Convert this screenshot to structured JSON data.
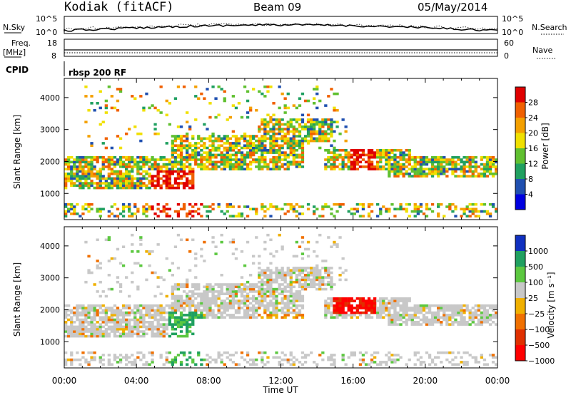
{
  "header": {
    "station": "Kodiak (fitACF)",
    "beam": "Beam 09",
    "date": "05/May/2014"
  },
  "top_panels": {
    "nsky_label": "N.Sky",
    "nsky_ticks": [
      "10^5",
      "10^0"
    ],
    "nsearch_label": "N.Search",
    "nsearch_ticks": [
      "10^5",
      "10^0"
    ],
    "freq_label_1": "Freq.",
    "freq_label_2": "[MHz]",
    "freq_ticks": [
      "18",
      "8"
    ],
    "nave_label": "Nave",
    "nave_ticks": [
      "60",
      "0"
    ],
    "cpid_label": "CPID",
    "cpid_text": "rbsp 200 RF"
  },
  "chart_data": [
    {
      "type": "heatmap",
      "name": "power-panel",
      "ylabel": "Slant Range [km]",
      "yticks": [
        "4000",
        "3000",
        "2000",
        "1000"
      ],
      "ylim": [
        180,
        4600
      ],
      "colorbar_label": "Power [dB]",
      "colorbar_ticks": [
        "28",
        "24",
        "20",
        "16",
        "12",
        "8",
        "4"
      ],
      "colorbar_colors": [
        "#e00000",
        "#f06000",
        "#f4a000",
        "#f0e000",
        "#60c030",
        "#20a060",
        "#2050b0",
        "#0000e0"
      ]
    },
    {
      "type": "heatmap",
      "name": "velocity-panel",
      "ylabel": "Slant Range [km]",
      "yticks": [
        "4000",
        "3000",
        "2000",
        "1000"
      ],
      "ylim": [
        180,
        4600
      ],
      "colorbar_label": "Velocity [m s⁻¹]",
      "colorbar_ticks": [
        "1000",
        "500",
        "100",
        "25",
        "−25",
        "−100",
        "−500",
        "−1000"
      ],
      "colorbar_colors": [
        "#1030c0",
        "#20a060",
        "#5cc840",
        "#c8c8c8",
        "#f0b000",
        "#f07000",
        "#e03000",
        "#ff0000"
      ]
    }
  ],
  "time_axis": {
    "xlabel": "Time UT",
    "ticks": [
      "00:00",
      "04:00",
      "08:00",
      "12:00",
      "16:00",
      "20:00",
      "00:00"
    ]
  }
}
